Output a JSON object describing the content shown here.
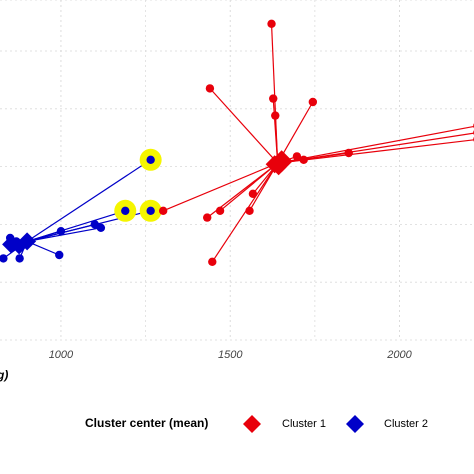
{
  "chart_data": {
    "type": "scatter",
    "title": "",
    "xlabel_visible_fragment": "g)",
    "ylabel": "",
    "x_ticks": [
      1000,
      1500,
      2000
    ],
    "x_tick_labels": [
      "1000",
      "1500",
      "2000"
    ],
    "xlim": [
      820,
      2220
    ],
    "ylim": [
      0,
      1
    ],
    "grid": true,
    "legend": {
      "placement": "bottom",
      "title": "Cluster center (mean)",
      "entries": [
        {
          "label": "Cluster 1",
          "color": "#e8000b"
        },
        {
          "label": "Cluster 2",
          "color": "#0000c8"
        }
      ]
    },
    "highlight_color": "#f5f500",
    "series": [
      {
        "name": "Cluster 1",
        "color": "#e8000b",
        "center": {
          "x": 1640,
          "y": 0.52
        },
        "points": [
          {
            "x": 1622,
            "y": 0.93
          },
          {
            "x": 1440,
            "y": 0.74
          },
          {
            "x": 1627,
            "y": 0.71
          },
          {
            "x": 1633,
            "y": 0.66
          },
          {
            "x": 1744,
            "y": 0.7
          },
          {
            "x": 1697,
            "y": 0.54
          },
          {
            "x": 1717,
            "y": 0.53
          },
          {
            "x": 1850,
            "y": 0.55
          },
          {
            "x": 1302,
            "y": 0.38
          },
          {
            "x": 1470,
            "y": 0.38
          },
          {
            "x": 1432,
            "y": 0.36
          },
          {
            "x": 1567,
            "y": 0.43
          },
          {
            "x": 1557,
            "y": 0.38
          },
          {
            "x": 1447,
            "y": 0.23
          },
          {
            "x": 2230,
            "y": 0.63
          },
          {
            "x": 2230,
            "y": 0.61
          },
          {
            "x": 2230,
            "y": 0.59
          }
        ]
      },
      {
        "name": "Cluster 2",
        "color": "#0000c8",
        "center": {
          "x": 900,
          "y": 0.29
        },
        "points": [
          {
            "x": 1265,
            "y": 0.53,
            "highlighted": true
          },
          {
            "x": 1190,
            "y": 0.38,
            "highlighted": true
          },
          {
            "x": 1265,
            "y": 0.38,
            "highlighted": true
          },
          {
            "x": 1118,
            "y": 0.33
          },
          {
            "x": 1100,
            "y": 0.34
          },
          {
            "x": 1000,
            "y": 0.32
          },
          {
            "x": 995,
            "y": 0.25
          },
          {
            "x": 868,
            "y": 0.29
          },
          {
            "x": 850,
            "y": 0.3
          },
          {
            "x": 878,
            "y": 0.24
          },
          {
            "x": 830,
            "y": 0.24
          }
        ]
      }
    ]
  }
}
